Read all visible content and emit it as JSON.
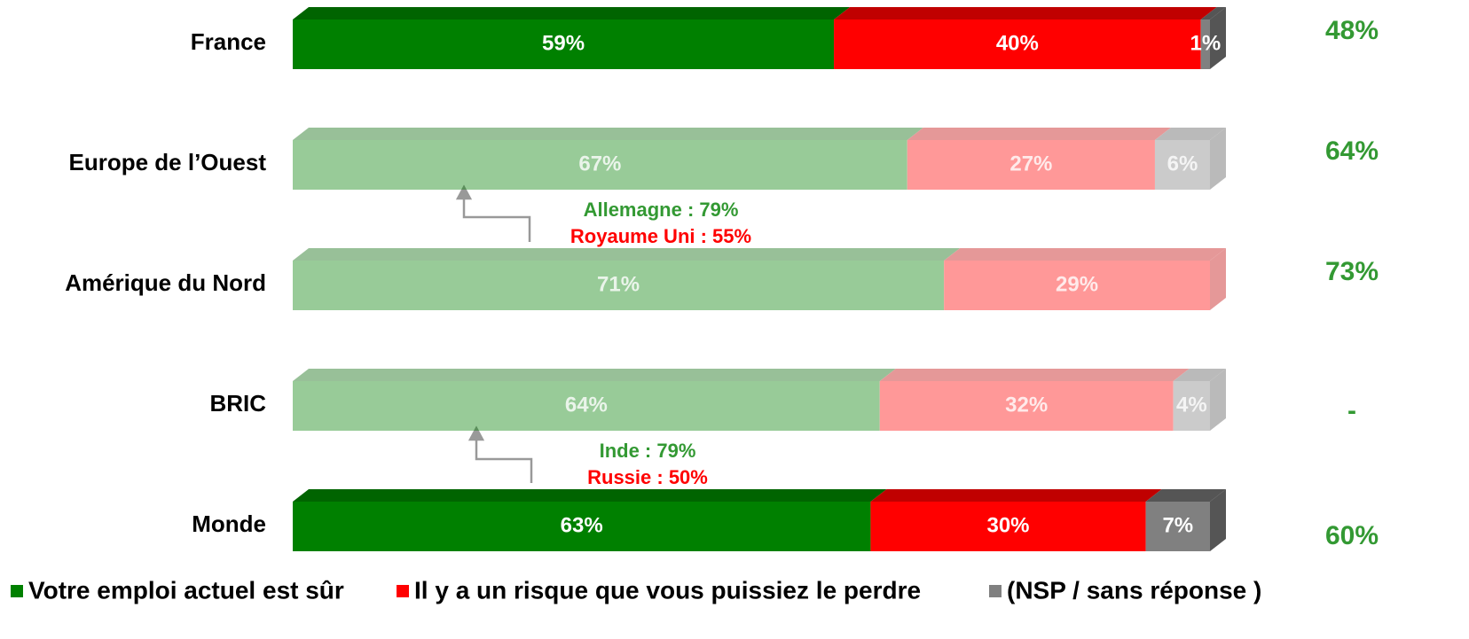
{
  "chart_data": {
    "type": "stacked-bar-horizontal",
    "categories": [
      "France",
      "Europe de l’Ouest",
      "Amérique du Nord",
      "BRIC",
      "Monde"
    ],
    "xlim": [
      0,
      100
    ],
    "faded": [
      false,
      true,
      true,
      true,
      false
    ],
    "series": [
      {
        "name": "Votre emploi actuel est sûr",
        "color": "#008000",
        "top_color": "#006400",
        "values": [
          59,
          67,
          71,
          64,
          63
        ],
        "value_labels": [
          "59%",
          "67%",
          "71%",
          "64%",
          "63%"
        ]
      },
      {
        "name": "Il y a un risque que vous puissiez le perdre",
        "color": "#ff0000",
        "top_color": "#c00000",
        "values": [
          40,
          27,
          29,
          32,
          30
        ],
        "value_labels": [
          "40%",
          "27%",
          "29%",
          "32%",
          "30%"
        ]
      },
      {
        "name": "(NSP / sans réponse )",
        "color": "#808080",
        "top_color": "#555555",
        "values": [
          1,
          6,
          null,
          4,
          7
        ],
        "value_labels": [
          "1%",
          "6%",
          null,
          "4%",
          "7%"
        ]
      }
    ],
    "right_column": [
      "48%",
      "64%",
      "73%",
      "-",
      "60%"
    ],
    "annotations": [
      {
        "row": 1,
        "text": "Allemagne : 79%",
        "color": "#339933"
      },
      {
        "row": 1,
        "text": "Royaume Uni : 55%",
        "color": "#ff0000"
      },
      {
        "row": 3,
        "text": "Inde : 79%",
        "color": "#339933"
      },
      {
        "row": 3,
        "text": "Russie : 50%",
        "color": "#ff0000"
      }
    ]
  }
}
